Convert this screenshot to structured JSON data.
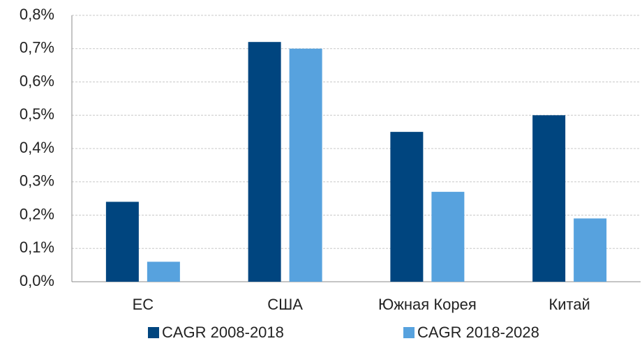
{
  "chart_data": {
    "type": "bar",
    "categories": [
      "ЕС",
      "США",
      "Южная Корея",
      "Китай"
    ],
    "series": [
      {
        "name": "CAGR 2008-2018",
        "color": "#00457f",
        "values": [
          0.24,
          0.72,
          0.45,
          0.5
        ]
      },
      {
        "name": "CAGR 2018-2028",
        "color": "#57a2de",
        "values": [
          0.06,
          0.7,
          0.27,
          0.19
        ]
      }
    ],
    "ylim": [
      0,
      0.8
    ],
    "yticks": [
      {
        "value": 0,
        "label": "0,0%"
      },
      {
        "value": 0.1,
        "label": "0,1%"
      },
      {
        "value": 0.2,
        "label": "0,2%"
      },
      {
        "value": 0.3,
        "label": "0,3%"
      },
      {
        "value": 0.4,
        "label": "0,4%"
      },
      {
        "value": 0.5,
        "label": "0,5%"
      },
      {
        "value": 0.6,
        "label": "0,6%"
      },
      {
        "value": 0.7,
        "label": "0,7%"
      },
      {
        "value": 0.8,
        "label": "0,8%"
      }
    ],
    "grid": true
  }
}
